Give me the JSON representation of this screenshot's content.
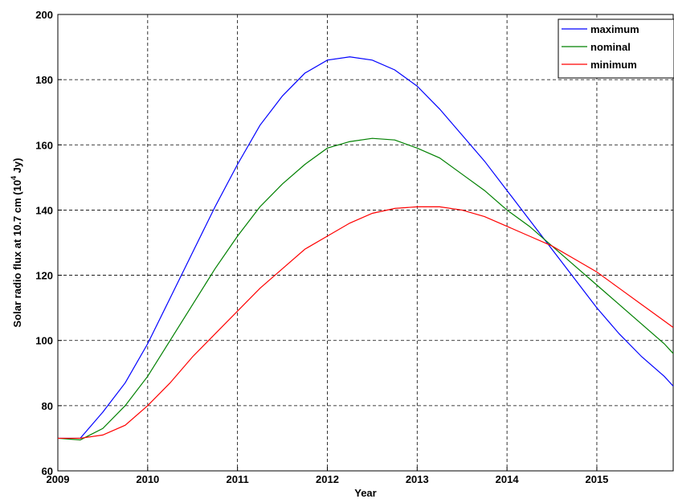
{
  "chart_data": {
    "type": "line",
    "xlabel": "Year",
    "ylabel": [
      "Solar radio flux at 10.7 cm (10",
      "4",
      " Jy)"
    ],
    "x": [
      2009,
      2009.25,
      2009.5,
      2009.75,
      2010,
      2010.25,
      2010.5,
      2010.75,
      2011,
      2011.25,
      2011.5,
      2011.75,
      2012,
      2012.25,
      2012.5,
      2012.75,
      2013,
      2013.25,
      2013.5,
      2013.75,
      2014,
      2014.25,
      2014.5,
      2014.75,
      2015,
      2015.25,
      2015.5,
      2015.75,
      2015.85
    ],
    "series": [
      {
        "name": "maximum",
        "color": "#0000ff",
        "values": [
          70,
          70,
          78,
          87,
          99,
          113,
          127,
          141,
          154,
          166,
          175,
          182,
          186,
          187,
          186,
          183,
          178,
          171,
          163,
          155,
          146,
          137,
          128,
          119,
          110,
          102,
          95,
          89,
          86
        ]
      },
      {
        "name": "nominal",
        "color": "#008000",
        "values": [
          70,
          69.5,
          73,
          80,
          89,
          100,
          111,
          122,
          132,
          141,
          148,
          154,
          159,
          161,
          162,
          161.5,
          159,
          156,
          151,
          146,
          140,
          135,
          129,
          123,
          117,
          111,
          105,
          99,
          96
        ]
      },
      {
        "name": "minimum",
        "color": "#ff0000",
        "values": [
          70,
          70,
          71,
          74,
          80,
          87,
          95,
          102,
          109,
          116,
          122,
          128,
          132,
          136,
          139,
          140.5,
          141,
          141,
          140,
          138,
          135,
          132,
          129,
          125,
          121,
          116,
          111,
          106,
          104
        ]
      }
    ],
    "xlim": [
      2009,
      2015.85
    ],
    "ylim": [
      60,
      200
    ],
    "xticks": [
      2009,
      2010,
      2011,
      2012,
      2013,
      2014,
      2015
    ],
    "yticks": [
      60,
      80,
      100,
      120,
      140,
      160,
      180,
      200
    ],
    "grid": true,
    "legend": "top-right"
  }
}
